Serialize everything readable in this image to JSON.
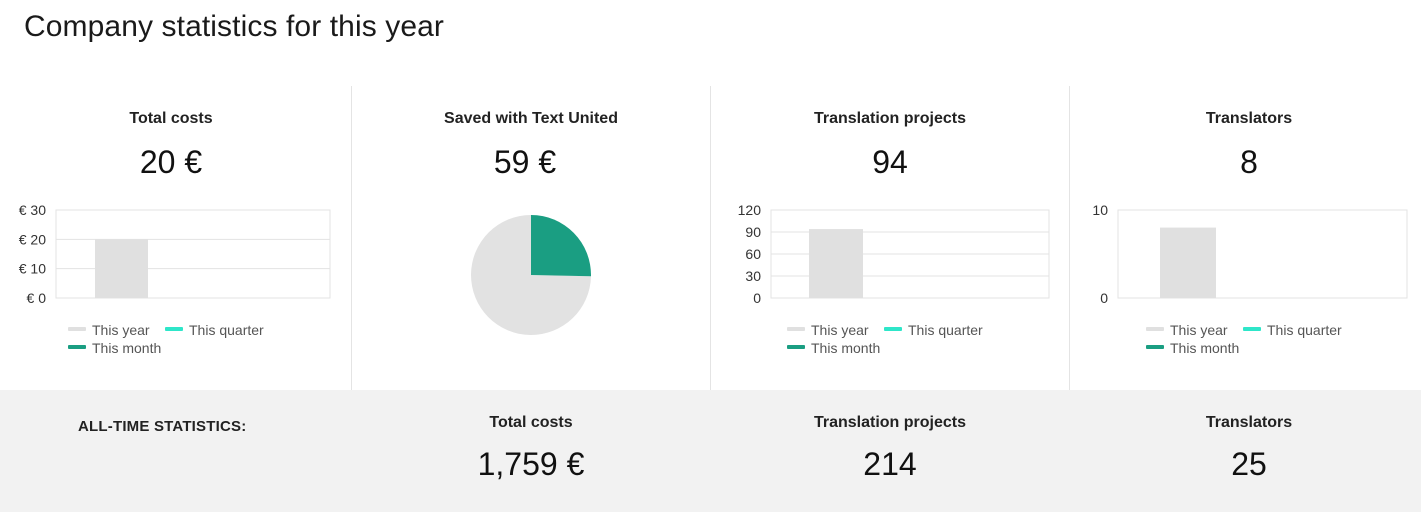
{
  "page": {
    "title": "Company statistics for this year"
  },
  "legend": {
    "this_year": "This year",
    "this_quarter": "This quarter",
    "this_month": "This month"
  },
  "colors": {
    "this_year": "#e0e0e0",
    "this_quarter": "#2ee6c9",
    "this_month": "#1a9e82",
    "pie_saved": "#1a9e82",
    "pie_rest": "#e2e2e2",
    "grid": "#e3e3e3"
  },
  "cards": [
    {
      "title": "Total costs",
      "value": "20 €"
    },
    {
      "title": "Saved with Text United",
      "value": "59 €"
    },
    {
      "title": "Translation projects",
      "value": "94"
    },
    {
      "title": "Translators",
      "value": "8"
    }
  ],
  "chart_data": [
    {
      "type": "bar",
      "categories": [
        "This year",
        "This quarter",
        "This month"
      ],
      "values": [
        20,
        0,
        0
      ],
      "ylim": [
        0,
        30
      ],
      "yticks": [
        0,
        10,
        20,
        30
      ],
      "ytick_labels": [
        "€ 0",
        "€ 10",
        "€ 20",
        "€ 30"
      ],
      "grid": true,
      "legend_placement": "bottom"
    },
    {
      "type": "pie",
      "labels": [
        "Saved with Text United",
        "Total costs"
      ],
      "values": [
        59,
        20
      ]
    },
    {
      "type": "bar",
      "categories": [
        "This year",
        "This quarter",
        "This month"
      ],
      "values": [
        94,
        0,
        0
      ],
      "ylim": [
        0,
        120
      ],
      "yticks": [
        0,
        30,
        60,
        90,
        120
      ],
      "ytick_labels": [
        "0",
        "30",
        "60",
        "90",
        "120"
      ],
      "grid": true,
      "legend_placement": "bottom"
    },
    {
      "type": "bar",
      "categories": [
        "This year",
        "This quarter",
        "This month"
      ],
      "values": [
        8,
        0,
        0
      ],
      "ylim": [
        0,
        10
      ],
      "yticks": [
        0,
        10
      ],
      "ytick_labels": [
        "0",
        "10"
      ],
      "grid": true,
      "legend_placement": "bottom"
    }
  ],
  "alltime": {
    "heading": "ALL-TIME STATISTICS:",
    "columns": [
      {
        "label": "Total costs",
        "value": "1,759 €"
      },
      {
        "label": "Translation projects",
        "value": "214"
      },
      {
        "label": "Translators",
        "value": "25"
      }
    ]
  }
}
